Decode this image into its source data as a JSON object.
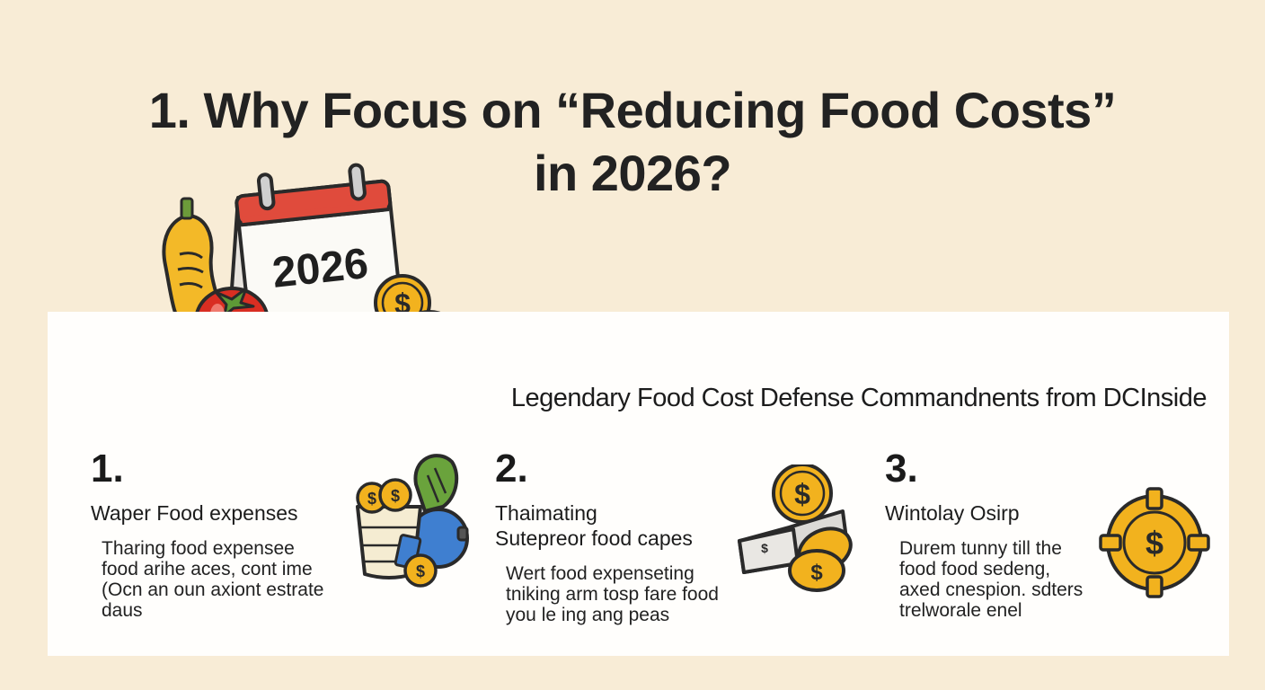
{
  "title": {
    "line1": "1.  Why Focus on “Reducing Food Costs”",
    "line2": "in 2026?"
  },
  "calendar": {
    "year": "2026"
  },
  "subtitle": "Legendary Food Cost Defense Commandnents from DCInside",
  "items": [
    {
      "number": "1.",
      "heading": "Waper Food expenses",
      "body": "Tharing food expensee\nfood arihe aces, cont ime\n(Ocn an oun axiont estrate\ndaus"
    },
    {
      "number": "2.",
      "heading": "Thaimating\nSutepreor food capes",
      "body": "Wert food expenseting\ntniking arm tosp fare food\nyou le ing ang peas"
    },
    {
      "number": "3.",
      "heading": "Wintolay Osirp",
      "body": "Durem tunny till the\nfood food sedeng,\naxed cnespion. sdters\ntrelworale enel"
    }
  ],
  "icons": {
    "calendar": "calendar-icon",
    "vegetables": "vegetables-icon",
    "coins": "coins-icon",
    "grocery_bag": "grocery-bag-icon",
    "wallet": "wallet-coins-icon",
    "coin_medallion": "coin-medallion-icon"
  },
  "colors": {
    "background": "#f8ecd6",
    "panel": "#fffefc",
    "calendar_red": "#e04b3c",
    "coin_gold": "#f2b21e",
    "tomato": "#d92e22",
    "squash": "#f3b928"
  }
}
